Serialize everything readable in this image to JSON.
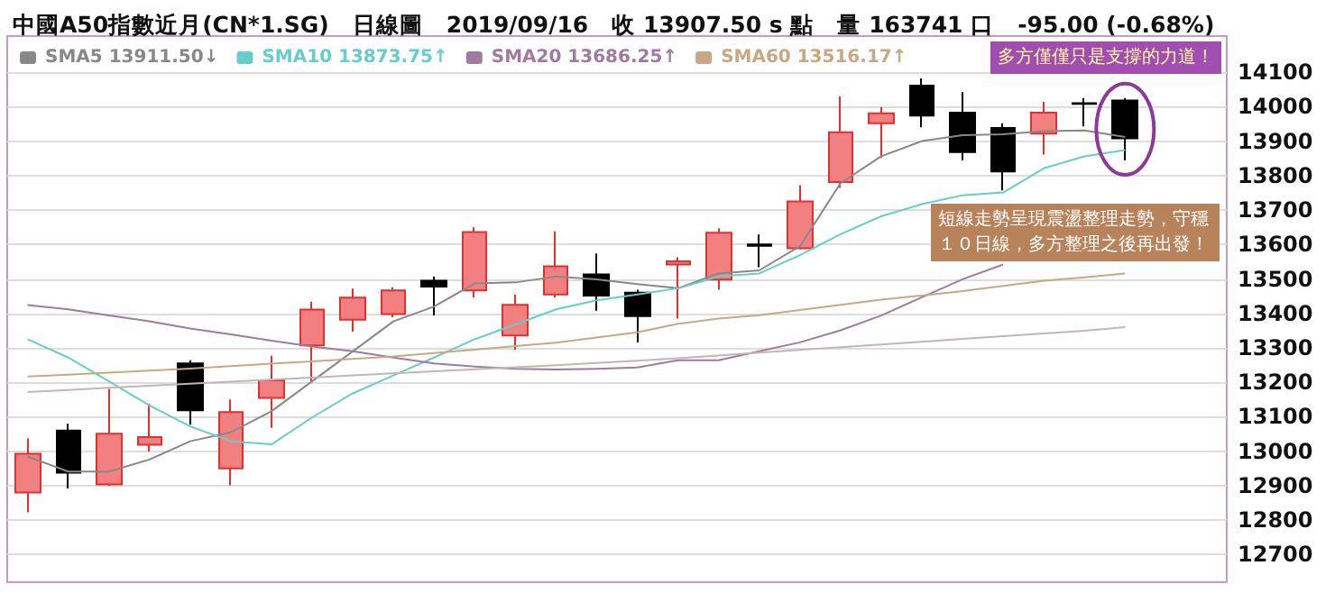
{
  "chart_data": {
    "type": "candlestick",
    "title": "中國A50指數近月(CN*1.SG)　日線圖　2019/09/16　收 13907.50 s 點　量 163741 口　-95.00 (-0.68%)",
    "annotations": [
      "多方僅僅只是支撐的力道！",
      "短線走勢呈現震盪整理走勢，守穩１０日線，多方整理之後再出發！"
    ],
    "categories": [
      null,
      null,
      null,
      null,
      null,
      null,
      null,
      null,
      null,
      null,
      null,
      null,
      null,
      null,
      null,
      null,
      null,
      null,
      null,
      null,
      null,
      null,
      null,
      null,
      null,
      null,
      null,
      null
    ],
    "ohlc": [
      [
        12880,
        13037,
        12823,
        12993
      ],
      [
        13060,
        13080,
        12892,
        12938
      ],
      [
        12904,
        13181,
        12900,
        13051
      ],
      [
        13019,
        13138,
        12999,
        13041
      ],
      [
        13255,
        13264,
        13077,
        13119
      ],
      [
        12950,
        13150,
        12901,
        13114
      ],
      [
        13155,
        13277,
        13068,
        13206
      ],
      [
        13307,
        13434,
        13202,
        13411
      ],
      [
        13382,
        13472,
        13347,
        13446
      ],
      [
        13398,
        13476,
        13389,
        13467
      ],
      [
        13495,
        13507,
        13394,
        13478
      ],
      [
        13467,
        13650,
        13446,
        13636
      ],
      [
        13336,
        13455,
        13295,
        13425
      ],
      [
        13455,
        13638,
        13446,
        13537
      ],
      [
        13513,
        13574,
        13408,
        13452
      ],
      [
        13460,
        13469,
        13316,
        13392
      ],
      [
        13542,
        13563,
        13385,
        13551
      ],
      [
        13498,
        13647,
        13469,
        13634
      ],
      [
        13600,
        13629,
        13534,
        13596
      ],
      [
        13589,
        13772,
        13586,
        13725
      ],
      [
        13781,
        14030,
        13764,
        13926
      ],
      [
        13952,
        13999,
        13851,
        13981
      ],
      [
        14061,
        14082,
        13940,
        13974
      ],
      [
        13983,
        14042,
        13844,
        13868
      ],
      [
        13938,
        13952,
        13757,
        13812
      ],
      [
        13922,
        14014,
        13861,
        13983
      ],
      [
        14010,
        14025,
        13943,
        14008
      ],
      [
        14018,
        14025,
        13844,
        13908
      ]
    ],
    "series": [
      {
        "name": "SMA5 13911.50↓",
        "type": "line",
        "color": "#888888",
        "values": [
          12985,
          12941,
          12941,
          12976,
          13029,
          13055,
          13116,
          13203,
          13290,
          13377,
          13420,
          13487,
          13490,
          13507,
          13499,
          13485,
          13473,
          13516,
          13525,
          13595,
          13778,
          13856,
          13900,
          13917,
          13920,
          13929,
          13931,
          13912
        ]
      },
      {
        "name": "SMA10 13873.75↑",
        "type": "line",
        "color": "#66cccc",
        "values": [
          13325,
          13272,
          13203,
          13133,
          13072,
          13029,
          13020,
          13098,
          13168,
          13220,
          13272,
          13325,
          13368,
          13412,
          13438,
          13455,
          13473,
          13507,
          13516,
          13569,
          13630,
          13682,
          13717,
          13743,
          13751,
          13821,
          13856,
          13874
        ]
      },
      {
        "name": "SMA20 13686.25↑",
        "type": "line",
        "color": "#a07aa0",
        "values": [
          13424,
          13412,
          13394,
          13377,
          13356,
          13339,
          13321,
          13304,
          13290,
          13272,
          13255,
          13246,
          13239,
          13237,
          13239,
          13243,
          13264,
          13264,
          13290,
          13316,
          13351,
          13394,
          13447,
          13499,
          13542,
          null,
          null,
          null
        ]
      },
      {
        "name": "SMA60 13516.17↑",
        "type": "line",
        "color": "#c8a882",
        "values": [
          13217,
          13222,
          13228,
          13234,
          13240,
          13247,
          13254,
          13261,
          13268,
          13275,
          13285,
          13295,
          13305,
          13315,
          13330,
          13345,
          13370,
          13385,
          13395,
          13410,
          13425,
          13440,
          13452,
          13465,
          13480,
          13495,
          13505,
          13516
        ]
      },
      {
        "type": "line",
        "color": "#c4b4b4",
        "values": [
          13172,
          13178,
          13184,
          13190,
          13196,
          13202,
          13208,
          13214,
          13220,
          13226,
          13232,
          13238,
          13244,
          13250,
          13256,
          13263,
          13270,
          13278,
          13286,
          13294,
          13302,
          13310,
          13318,
          13326,
          13334,
          13342,
          13350,
          13360
        ]
      }
    ],
    "ylim": [
      12620,
      14205
    ],
    "yticks": [
      12700,
      12800,
      12900,
      13000,
      13100,
      13200,
      13300,
      13400,
      13500,
      13600,
      13700,
      13800,
      13900,
      14000,
      14100
    ],
    "grid": "y",
    "legend": "top left",
    "marker": "none"
  }
}
